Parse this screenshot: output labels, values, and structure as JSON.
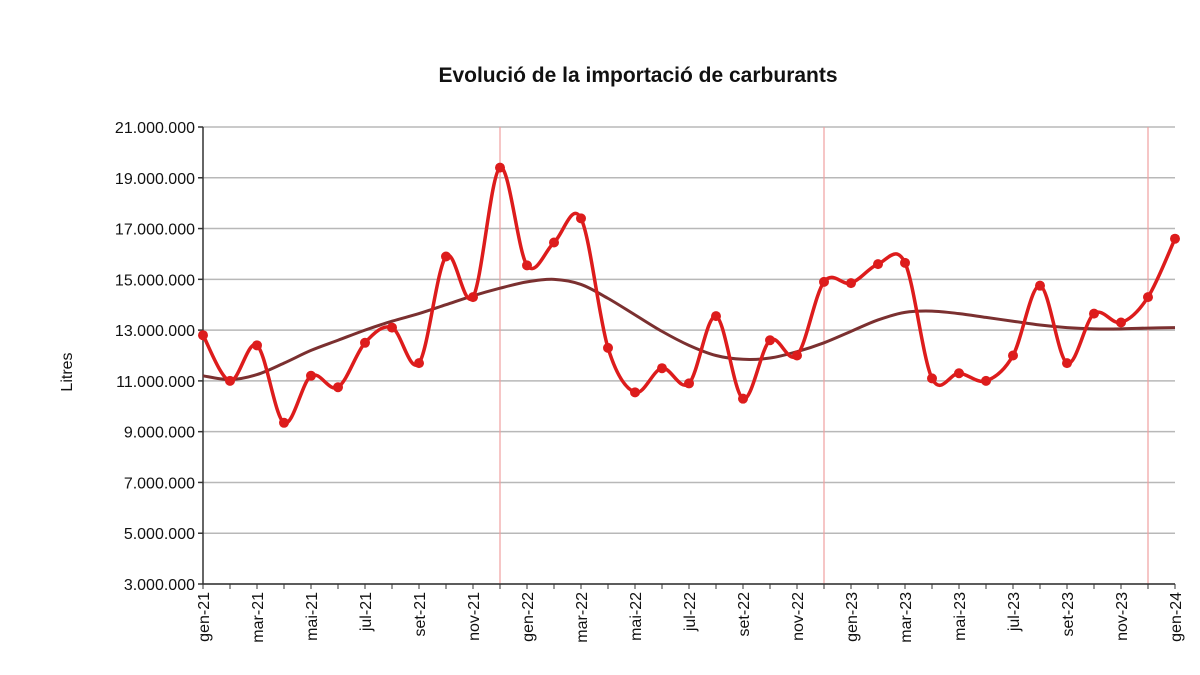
{
  "chart_data": {
    "type": "line",
    "title": "Evolució de la importació de carburants",
    "xlabel": "",
    "ylabel": "Litres",
    "ylim": [
      3000000,
      21000000
    ],
    "yticks": [
      "3.000.000",
      "5.000.000",
      "7.000.000",
      "9.000.000",
      "11.000.000",
      "13.000.000",
      "15.000.000",
      "17.000.000",
      "19.000.000",
      "21.000.000"
    ],
    "ytick_values": [
      3000000,
      5000000,
      7000000,
      9000000,
      11000000,
      13000000,
      15000000,
      17000000,
      19000000,
      21000000
    ],
    "x": [
      "gen-21",
      "feb-21",
      "mar-21",
      "abr-21",
      "mai-21",
      "jun-21",
      "jul-21",
      "ago-21",
      "set-21",
      "oct-21",
      "nov-21",
      "des-21",
      "gen-22",
      "feb-22",
      "mar-22",
      "abr-22",
      "mai-22",
      "jun-22",
      "jul-22",
      "ago-22",
      "set-22",
      "oct-22",
      "nov-22",
      "des-22",
      "gen-23",
      "feb-23",
      "mar-23",
      "abr-23",
      "mai-23",
      "jun-23",
      "jul-23",
      "ago-23",
      "set-23",
      "oct-23",
      "nov-23",
      "des-23",
      "gen-24"
    ],
    "xtick_labels": [
      "gen-21",
      "mar-21",
      "mai-21",
      "jul-21",
      "set-21",
      "nov-21",
      "gen-22",
      "mar-22",
      "mai-22",
      "jul-22",
      "set-22",
      "nov-22",
      "gen-23",
      "mar-23",
      "mai-23",
      "jul-23",
      "set-23",
      "nov-23",
      "gen-24"
    ],
    "grid": true,
    "year_separators": [
      "des-21",
      "des-22",
      "des-23"
    ],
    "series": [
      {
        "kind": "data",
        "color": "#dd1c1c",
        "values": [
          12800000,
          11000000,
          12400000,
          9350000,
          11200000,
          10750000,
          12500000,
          13100000,
          11700000,
          15900000,
          14300000,
          19400000,
          15550000,
          16450000,
          17400000,
          12300000,
          10550000,
          11500000,
          10900000,
          13550000,
          10300000,
          12600000,
          12000000,
          14900000,
          14850000,
          15600000,
          15650000,
          11100000,
          11300000,
          11000000,
          12000000,
          14750000,
          11700000,
          13650000,
          13300000,
          14300000,
          16600000
        ]
      },
      {
        "kind": "trend",
        "color": "#7b3030",
        "values": [
          11200000,
          11050000,
          11250000,
          11700000,
          12200000,
          12600000,
          13000000,
          13350000,
          13650000,
          14000000,
          14350000,
          14650000,
          14900000,
          15000000,
          14800000,
          14250000,
          13600000,
          12950000,
          12400000,
          12000000,
          11850000,
          11900000,
          12150000,
          12500000,
          12950000,
          13400000,
          13700000,
          13750000,
          13650000,
          13500000,
          13350000,
          13200000,
          13100000,
          13050000,
          13050000,
          13080000,
          13100000
        ]
      }
    ]
  }
}
